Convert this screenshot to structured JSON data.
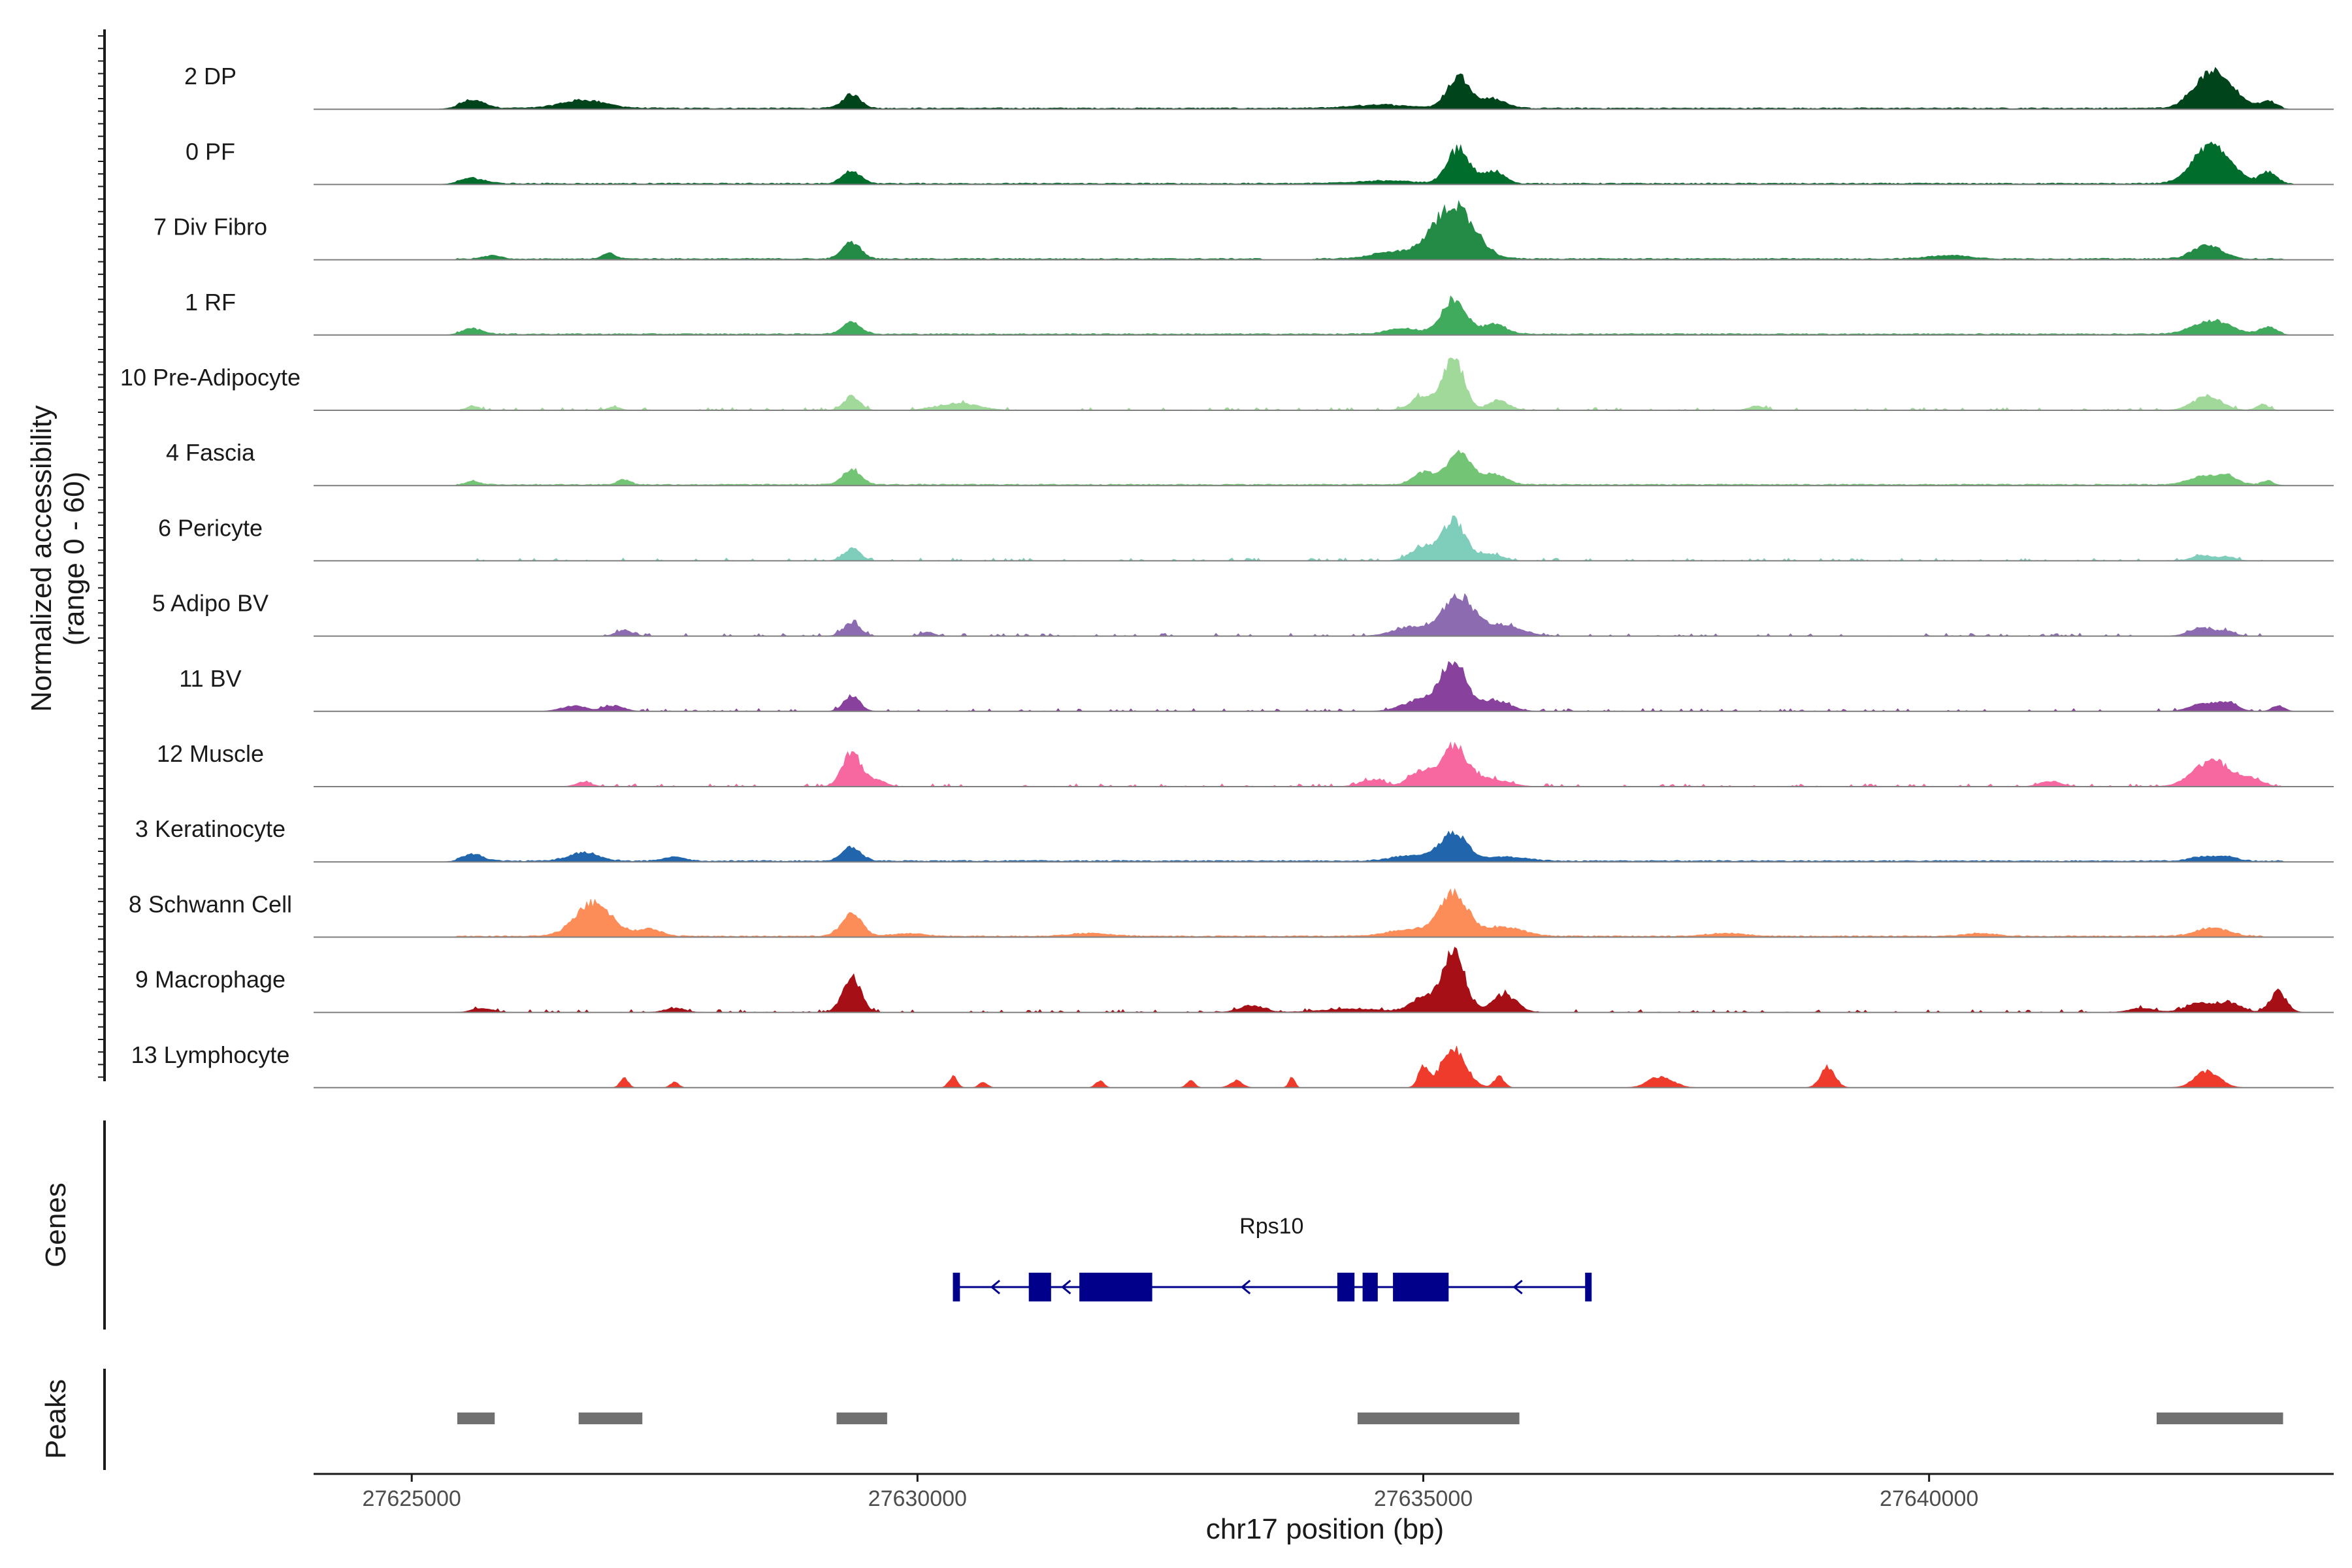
{
  "chart_data": {
    "type": "area",
    "title": "",
    "chromosome": "chr17",
    "xlabel": "chr17 position (bp)",
    "ylabel": "Normalized accessibility",
    "ylabel_range": "(range 0 - 60)",
    "y_range": [
      0,
      60
    ],
    "xlim": [
      24030,
      44000
    ],
    "x_ticks": [
      27625000,
      27630000,
      27635000,
      27640000
    ],
    "x_tick_labels": [
      "27625000",
      "27630000",
      "27635000",
      "27640000"
    ],
    "x_offset": 27600000,
    "series": [
      {
        "name": "2 DP",
        "color": "#00441b",
        "baseline": [
          25450,
          43500
        ],
        "peaks": [
          [
            25600,
            120,
            12
          ],
          [
            26700,
            220,
            12
          ],
          [
            29350,
            90,
            20
          ],
          [
            35350,
            110,
            48
          ],
          [
            35700,
            120,
            14
          ],
          [
            34600,
            300,
            5
          ],
          [
            42750,
            160,
            42
          ],
          [
            42950,
            140,
            22
          ],
          [
            43350,
            80,
            10
          ]
        ]
      },
      {
        "name": "0 PF",
        "color": "#006d2c",
        "baseline": [
          25450,
          43600
        ],
        "peaks": [
          [
            25600,
            120,
            8
          ],
          [
            29350,
            90,
            18
          ],
          [
            35350,
            110,
            50
          ],
          [
            35700,
            100,
            18
          ],
          [
            42750,
            160,
            48
          ],
          [
            42950,
            140,
            18
          ],
          [
            43350,
            80,
            16
          ],
          [
            34600,
            300,
            4
          ]
        ]
      },
      {
        "name": "7 Div Fibro",
        "color": "#238b45",
        "baseline": [
          25450,
          43500
        ],
        "gaps": [
          [
            33400,
            33900
          ]
        ],
        "peaks": [
          [
            25800,
            80,
            5
          ],
          [
            26950,
            60,
            8
          ],
          [
            29350,
            90,
            24
          ],
          [
            35300,
            200,
            78
          ],
          [
            34700,
            200,
            10
          ],
          [
            42750,
            140,
            20
          ],
          [
            40200,
            200,
            5
          ]
        ]
      },
      {
        "name": "1 RF",
        "color": "#41ab5d",
        "baseline": [
          25450,
          43500
        ],
        "peaks": [
          [
            25600,
            100,
            8
          ],
          [
            29350,
            90,
            18
          ],
          [
            35300,
            120,
            50
          ],
          [
            35700,
            120,
            14
          ],
          [
            34800,
            160,
            8
          ],
          [
            42800,
            180,
            20
          ],
          [
            43350,
            80,
            10
          ]
        ]
      },
      {
        "name": "10 Pre-Adipocyte",
        "color": "#a1d99b",
        "sparse": true,
        "baseline": [
          25450,
          43400
        ],
        "peaks": [
          [
            25600,
            60,
            6
          ],
          [
            27000,
            60,
            5
          ],
          [
            29350,
            80,
            20
          ],
          [
            30400,
            200,
            10
          ],
          [
            35300,
            100,
            78
          ],
          [
            35000,
            120,
            20
          ],
          [
            35750,
            100,
            14
          ],
          [
            38300,
            80,
            6
          ],
          [
            42750,
            140,
            20
          ],
          [
            43300,
            60,
            8
          ]
        ]
      },
      {
        "name": "4 Fascia",
        "color": "#74c476",
        "baseline": [
          25450,
          43400
        ],
        "peaks": [
          [
            25600,
            60,
            6
          ],
          [
            27100,
            60,
            8
          ],
          [
            29350,
            90,
            22
          ],
          [
            35350,
            120,
            46
          ],
          [
            35000,
            100,
            18
          ],
          [
            35700,
            120,
            14
          ],
          [
            42700,
            140,
            12
          ],
          [
            42950,
            100,
            12
          ],
          [
            43350,
            60,
            6
          ]
        ]
      },
      {
        "name": "6 Pericyte",
        "color": "#7fcdbb",
        "sparse": true,
        "baseline": [
          25600,
          43300
        ],
        "peaks": [
          [
            29350,
            80,
            18
          ],
          [
            35300,
            110,
            58
          ],
          [
            35000,
            120,
            20
          ],
          [
            35650,
            120,
            10
          ],
          [
            42700,
            100,
            8
          ],
          [
            42950,
            80,
            6
          ]
        ]
      },
      {
        "name": "5 Adipo BV",
        "color": "#8c6bb1",
        "sparse": true,
        "baseline": [
          26900,
          43300
        ],
        "peaks": [
          [
            27100,
            80,
            8
          ],
          [
            29350,
            80,
            20
          ],
          [
            30100,
            60,
            6
          ],
          [
            35350,
            150,
            58
          ],
          [
            34900,
            180,
            14
          ],
          [
            35800,
            180,
            16
          ],
          [
            42700,
            120,
            12
          ],
          [
            42950,
            80,
            6
          ]
        ]
      },
      {
        "name": "11 BV",
        "color": "#88419d",
        "sparse": true,
        "baseline": [
          26500,
          43500
        ],
        "peaks": [
          [
            26600,
            120,
            8
          ],
          [
            27000,
            100,
            8
          ],
          [
            29350,
            80,
            22
          ],
          [
            35300,
            120,
            70
          ],
          [
            35000,
            180,
            18
          ],
          [
            35700,
            150,
            16
          ],
          [
            42700,
            120,
            12
          ],
          [
            42950,
            100,
            12
          ],
          [
            43450,
            60,
            8
          ]
        ]
      },
      {
        "name": "12 Muscle",
        "color": "#f768a1",
        "sparse": true,
        "baseline": [
          26500,
          43500
        ],
        "peaks": [
          [
            26700,
            80,
            6
          ],
          [
            29350,
            90,
            50
          ],
          [
            29600,
            80,
            10
          ],
          [
            35300,
            140,
            58
          ],
          [
            34950,
            100,
            20
          ],
          [
            35700,
            150,
            10
          ],
          [
            34500,
            120,
            10
          ],
          [
            41200,
            100,
            8
          ],
          [
            42800,
            180,
            38
          ],
          [
            43200,
            100,
            10
          ]
        ]
      },
      {
        "name": "3 Keratinocyte",
        "color": "#2166ac",
        "baseline": [
          25450,
          43500
        ],
        "peaks": [
          [
            25600,
            100,
            10
          ],
          [
            26700,
            150,
            12
          ],
          [
            27600,
            100,
            6
          ],
          [
            29350,
            90,
            20
          ],
          [
            35300,
            130,
            40
          ],
          [
            34900,
            200,
            8
          ],
          [
            35800,
            200,
            6
          ],
          [
            42700,
            120,
            6
          ],
          [
            42950,
            100,
            6
          ]
        ]
      },
      {
        "name": "8 Schwann Cell",
        "color": "#fc8d59",
        "baseline": [
          25450,
          43300
        ],
        "peaks": [
          [
            26800,
            180,
            48
          ],
          [
            27350,
            120,
            10
          ],
          [
            29350,
            100,
            32
          ],
          [
            35300,
            140,
            62
          ],
          [
            34850,
            200,
            10
          ],
          [
            35800,
            180,
            14
          ],
          [
            42800,
            160,
            12
          ],
          [
            29900,
            150,
            4
          ],
          [
            31700,
            200,
            4
          ],
          [
            38000,
            200,
            4
          ],
          [
            40500,
            150,
            4
          ]
        ]
      },
      {
        "name": "9 Macrophage",
        "color": "#a50f15",
        "sparse": true,
        "baseline": [
          25400,
          43600
        ],
        "peaks": [
          [
            25700,
            100,
            6
          ],
          [
            27600,
            100,
            6
          ],
          [
            29350,
            90,
            50
          ],
          [
            35300,
            110,
            86
          ],
          [
            35000,
            120,
            22
          ],
          [
            35800,
            120,
            26
          ],
          [
            33300,
            120,
            10
          ],
          [
            42700,
            150,
            14
          ],
          [
            43000,
            100,
            12
          ],
          [
            43450,
            80,
            30
          ],
          [
            42100,
            120,
            6
          ],
          [
            34300,
            300,
            5
          ]
        ]
      },
      {
        "name": "13 Lymphocyte",
        "color": "#ef3b2c",
        "sparse": true,
        "baseline": null,
        "peaks": [
          [
            27100,
            40,
            14
          ],
          [
            27600,
            40,
            8
          ],
          [
            30350,
            40,
            16
          ],
          [
            30650,
            40,
            8
          ],
          [
            31800,
            40,
            10
          ],
          [
            32700,
            40,
            10
          ],
          [
            33150,
            60,
            10
          ],
          [
            33700,
            30,
            14
          ],
          [
            35000,
            50,
            30
          ],
          [
            35300,
            120,
            58
          ],
          [
            35750,
            50,
            16
          ],
          [
            37350,
            120,
            16
          ],
          [
            39000,
            70,
            30
          ],
          [
            42750,
            120,
            24
          ]
        ]
      }
    ],
    "genes": {
      "label": "Genes",
      "track": [
        {
          "name": "Rps10",
          "start": 30350,
          "end": 36650,
          "strand": "-",
          "exons": [
            [
              30350,
              30420
            ],
            [
              31100,
              31320
            ],
            [
              31600,
              32320
            ],
            [
              34150,
              34320
            ],
            [
              34400,
              34550
            ],
            [
              34700,
              35250
            ],
            [
              36600,
              36650
            ]
          ]
        }
      ]
    },
    "peaks_track": {
      "label": "Peaks",
      "regions": [
        [
          25450,
          25820
        ],
        [
          26650,
          27280
        ],
        [
          29200,
          29700
        ],
        [
          34350,
          35950
        ],
        [
          42250,
          43500
        ]
      ]
    }
  }
}
